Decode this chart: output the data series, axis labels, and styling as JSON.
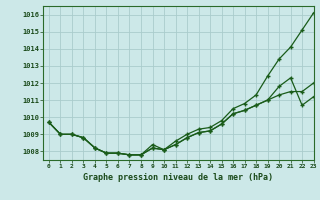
{
  "title": "Graphe pression niveau de la mer (hPa)",
  "bg_color": "#cce8e8",
  "grid_color": "#aacccc",
  "line_color": "#1a5c1a",
  "xlim": [
    -0.5,
    23
  ],
  "ylim": [
    1007.5,
    1016.5
  ],
  "yticks": [
    1008,
    1009,
    1010,
    1011,
    1012,
    1013,
    1014,
    1015,
    1016
  ],
  "xticks": [
    0,
    1,
    2,
    3,
    4,
    5,
    6,
    7,
    8,
    9,
    10,
    11,
    12,
    13,
    14,
    15,
    16,
    17,
    18,
    19,
    20,
    21,
    22,
    23
  ],
  "line1": [
    1009.7,
    1009.0,
    1009.0,
    1008.8,
    1008.2,
    1007.9,
    1007.9,
    1007.8,
    1007.8,
    1008.4,
    1008.1,
    1008.6,
    1009.0,
    1009.3,
    1009.4,
    1009.8,
    1010.5,
    1010.8,
    1011.3,
    1012.4,
    1013.4,
    1014.1,
    1015.1,
    1016.1
  ],
  "line2": [
    1009.7,
    1009.0,
    1009.0,
    1008.8,
    1008.2,
    1007.9,
    1007.9,
    1007.8,
    1007.8,
    1008.2,
    1008.1,
    1008.4,
    1008.8,
    1009.1,
    1009.2,
    1009.6,
    1010.2,
    1010.4,
    1010.7,
    1011.0,
    1011.3,
    1011.5,
    1011.5,
    1012.0
  ],
  "line3": [
    1009.7,
    1009.0,
    1009.0,
    1008.8,
    1008.2,
    1007.9,
    1007.9,
    1007.8,
    1007.8,
    1008.2,
    1008.1,
    1008.4,
    1008.8,
    1009.1,
    1009.2,
    1009.6,
    1010.2,
    1010.4,
    1010.7,
    1011.0,
    1011.8,
    1012.3,
    1010.7,
    1011.2
  ]
}
